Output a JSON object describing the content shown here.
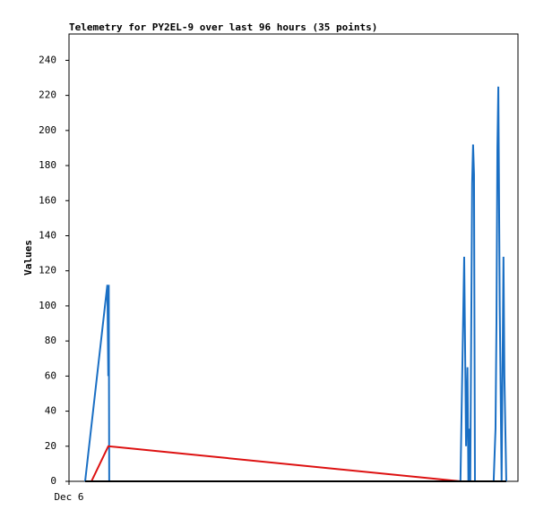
{
  "chart_data": {
    "type": "line",
    "title": "Telemetry for PY2EL-9 over last 96 hours (35 points)",
    "y_label": "Values",
    "xlim": [
      0,
      96
    ],
    "xticks": [
      {
        "value": 0,
        "label": "Dec 6"
      }
    ],
    "ylim": [
      0,
      255
    ],
    "yticks": [
      0,
      20,
      40,
      60,
      80,
      100,
      120,
      140,
      160,
      180,
      200,
      220,
      240
    ],
    "series": [
      {
        "color": "#1a6fc4",
        "x": [
          3.45,
          8.2,
          8.4,
          8.5,
          8.6,
          83.7,
          84.5,
          84.9,
          85.2,
          85.4,
          85.6,
          85.8,
          86.2,
          86.4,
          86.6,
          86.8,
          90.8,
          91.2,
          91.4,
          91.6,
          91.8,
          92.1,
          92.5,
          92.9,
          93.1,
          93.5
        ],
        "values": [
          0,
          112,
          60,
          112,
          0,
          0,
          128,
          20,
          65,
          0,
          30,
          0,
          170,
          192,
          175,
          0,
          0,
          30,
          90,
          190,
          225,
          100,
          0,
          128,
          60,
          0
        ]
      },
      {
        "color": "#dd1111",
        "x": [
          4.8,
          8.4,
          83.7
        ],
        "values": [
          0,
          20,
          0
        ]
      },
      {
        "color": "#000000",
        "x": [
          3.45,
          93.5
        ],
        "values": [
          0,
          0
        ]
      }
    ]
  }
}
